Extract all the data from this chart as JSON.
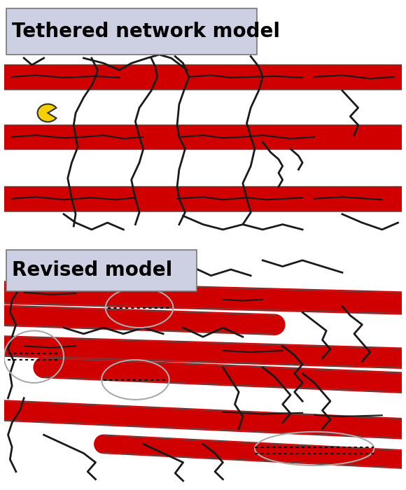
{
  "fig_width": 5.8,
  "fig_height": 7.0,
  "dpi": 100,
  "bg_color": "#ffffff",
  "panel1_title": "Tethered network model",
  "panel2_title": "Revised model",
  "title_box_color": "#cdd0e3",
  "title_fontsize": 20,
  "red_color": "#d10000",
  "line_color": "#1a1a1a",
  "gray_edge": "#555555",
  "yellow_color": "#f5d000",
  "circle_color": "#999999"
}
